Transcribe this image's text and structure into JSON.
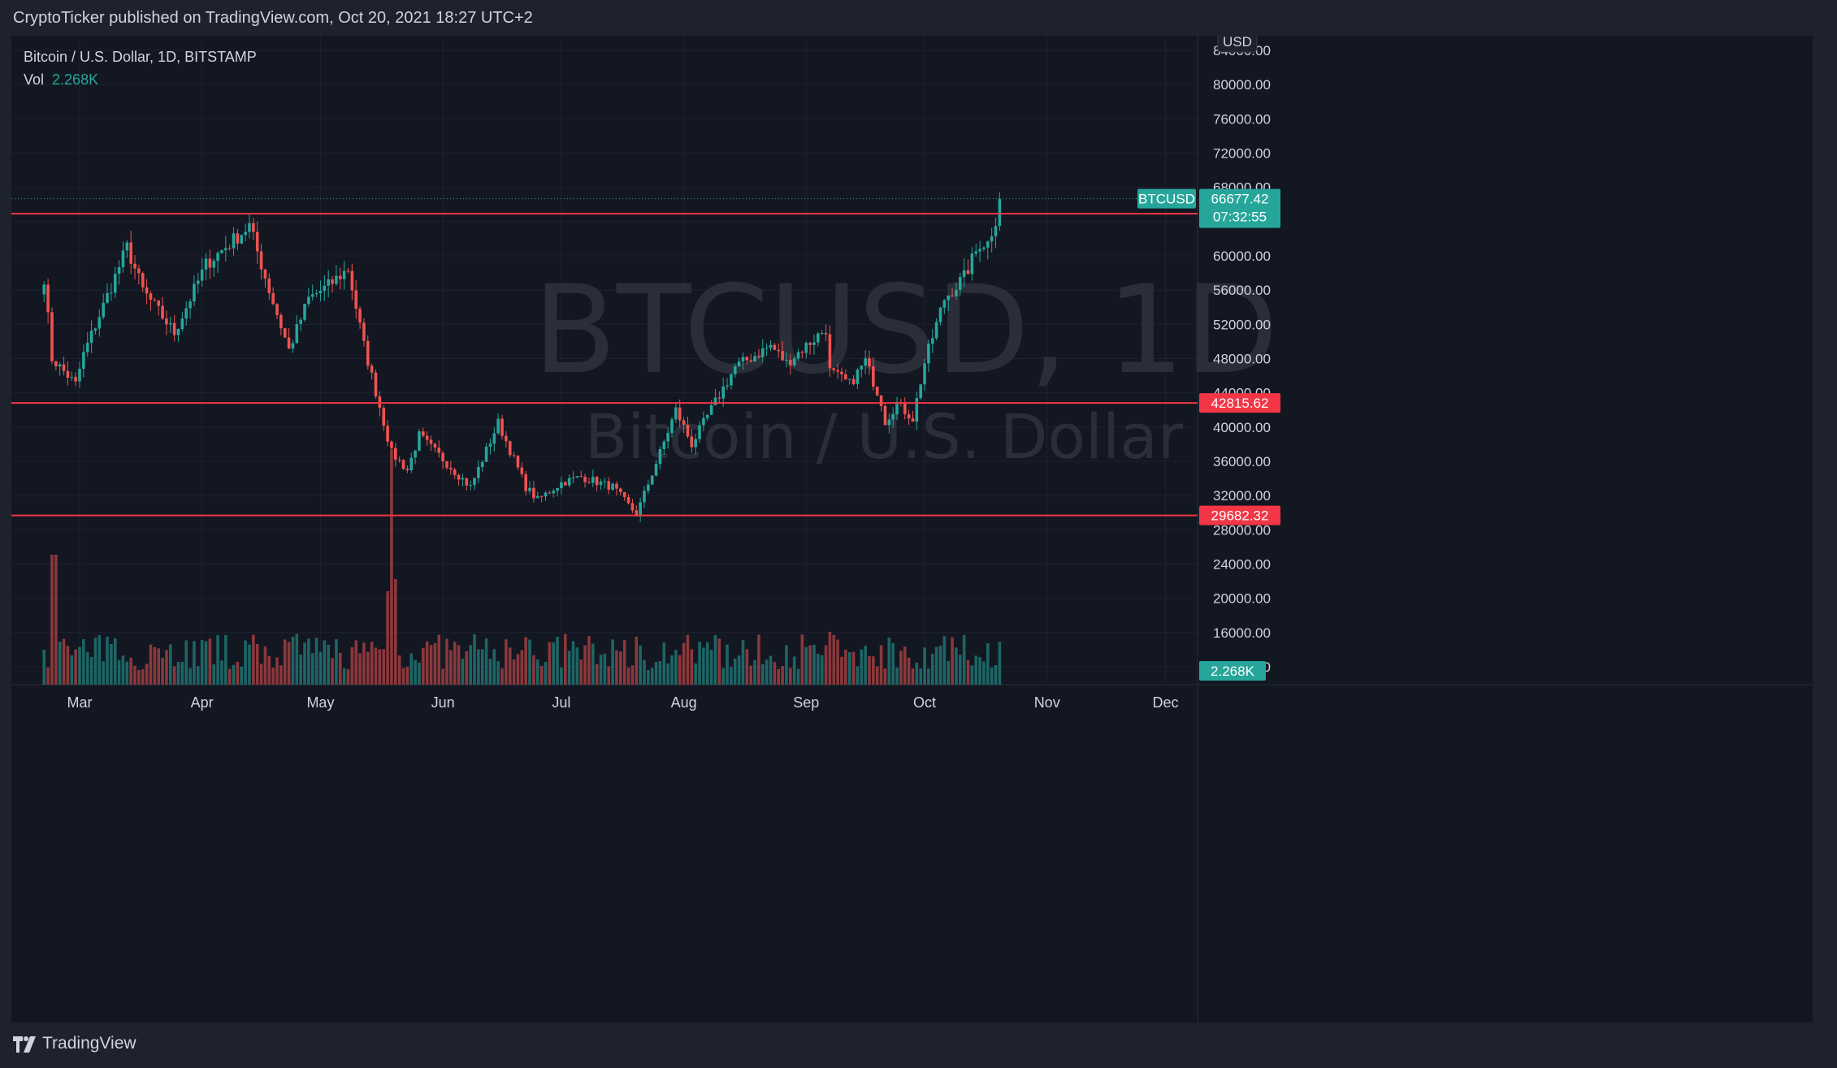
{
  "header": {
    "published": "CryptoTicker published on TradingView.com, Oct 20, 2021 18:27 UTC+2"
  },
  "legend": {
    "symbol_line": "Bitcoin / U.S. Dollar, 1D, BITSTAMP",
    "vol_label": "Vol",
    "vol_value": "2.268K"
  },
  "footer": {
    "brand": "TradingView"
  },
  "watermark": {
    "symbol": "BTCUSD, 1D",
    "description": "Bitcoin / U.S. Dollar"
  },
  "chart_data": {
    "type": "candlestick",
    "symbol": "BTCUSD",
    "interval": "1D",
    "exchange": "BITSTAMP",
    "currency": "USD",
    "y_range": [
      12000,
      84000
    ],
    "y_ticks": [
      "84000.00",
      "80000.00",
      "76000.00",
      "72000.00",
      "68000.00",
      "60000.00",
      "56000.00",
      "52000.00",
      "48000.00",
      "44000.00",
      "40000.00",
      "36000.00",
      "32000.00",
      "28000.00",
      "24000.00",
      "20000.00",
      "16000.00",
      "12000.00"
    ],
    "x_labels": [
      "Mar",
      "Apr",
      "May",
      "Jun",
      "Jul",
      "Aug",
      "Sep",
      "Oct",
      "Nov",
      "Dec"
    ],
    "horizontal_lines": [
      {
        "price": 64918.0,
        "label": "64918.00"
      },
      {
        "price": 42815.62,
        "label": "42815.62"
      },
      {
        "price": 29682.32,
        "label": "29682.32"
      }
    ],
    "last_price": {
      "symbol": "BTCUSD",
      "price": 66677.42,
      "label": "66677.42",
      "countdown": "07:32:55"
    },
    "volume_last": "2.268K",
    "anchors": [
      [
        "2021-02-20",
        57500
      ],
      [
        "2021-02-22",
        48000
      ],
      [
        "2021-02-28",
        45000
      ],
      [
        "2021-03-02",
        48500
      ],
      [
        "2021-03-13",
        61000
      ],
      [
        "2021-03-17",
        56000
      ],
      [
        "2021-03-25",
        51000
      ],
      [
        "2021-04-02",
        59000
      ],
      [
        "2021-04-13",
        63500
      ],
      [
        "2021-04-18",
        56000
      ],
      [
        "2021-04-23",
        49000
      ],
      [
        "2021-04-28",
        55000
      ],
      [
        "2021-05-03",
        56500
      ],
      [
        "2021-05-08",
        58500
      ],
      [
        "2021-05-12",
        49500
      ],
      [
        "2021-05-19",
        37000
      ],
      [
        "2021-05-23",
        35000
      ],
      [
        "2021-05-26",
        39000
      ],
      [
        "2021-06-08",
        33000
      ],
      [
        "2021-06-15",
        40500
      ],
      [
        "2021-06-22",
        33000
      ],
      [
        "2021-06-25",
        31500
      ],
      [
        "2021-07-01",
        33500
      ],
      [
        "2021-07-06",
        34200
      ],
      [
        "2021-07-14",
        33000
      ],
      [
        "2021-07-20",
        29800
      ],
      [
        "2021-07-26",
        37000
      ],
      [
        "2021-07-30",
        42000
      ],
      [
        "2021-08-03",
        38000
      ],
      [
        "2021-08-14",
        47000
      ],
      [
        "2021-08-23",
        49500
      ],
      [
        "2021-08-27",
        47500
      ],
      [
        "2021-09-06",
        51500
      ],
      [
        "2021-09-07",
        46500
      ],
      [
        "2021-09-12",
        45000
      ],
      [
        "2021-09-16",
        47700
      ],
      [
        "2021-09-20",
        43000
      ],
      [
        "2021-09-21",
        40700
      ],
      [
        "2021-09-24",
        42800
      ],
      [
        "2021-09-28",
        41000
      ],
      [
        "2021-10-01",
        47500
      ],
      [
        "2021-10-06",
        55000
      ],
      [
        "2021-10-11",
        57500
      ],
      [
        "2021-10-15",
        61500
      ],
      [
        "2021-10-17",
        61500
      ],
      [
        "2021-10-19",
        64300
      ],
      [
        "2021-10-20",
        66677
      ]
    ]
  },
  "colors": {
    "up": "#26a69a",
    "down": "#ef5350",
    "line": "#f23645",
    "background": "#131722",
    "panel": "#1e222d"
  }
}
